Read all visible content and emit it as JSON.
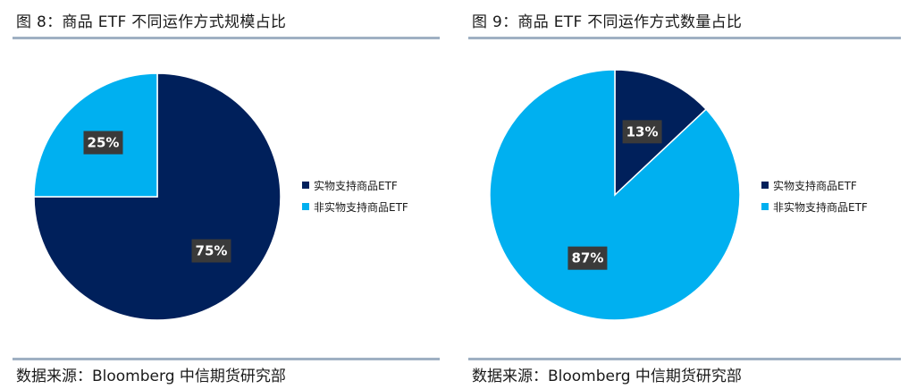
{
  "colors": {
    "dark": "#00205b",
    "light": "#00b0f0",
    "rule": "#9fb0c3"
  },
  "legend": [
    "实物支持商品ETF",
    "非实物支持商品ETF"
  ],
  "chart_data": [
    {
      "type": "pie",
      "title": "图 8：商品 ETF 不同运作方式规模占比",
      "source": "数据来源：Bloomberg  中信期货研究部",
      "labels": [
        "实物支持商品ETF",
        "非实物支持商品ETF"
      ],
      "values": [
        75,
        25
      ],
      "data_labels": [
        "75%",
        "25%"
      ],
      "legend_placement": "right"
    },
    {
      "type": "pie",
      "title": "图 9：商品 ETF 不同运作方式数量占比",
      "source": "数据来源：Bloomberg  中信期货研究部",
      "labels": [
        "实物支持商品ETF",
        "非实物支持商品ETF"
      ],
      "values": [
        13,
        87
      ],
      "data_labels": [
        "13%",
        "87%"
      ],
      "legend_placement": "right"
    }
  ]
}
